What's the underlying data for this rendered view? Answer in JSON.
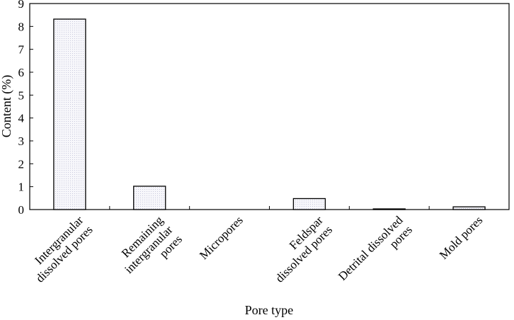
{
  "chart_data": {
    "type": "bar",
    "categories": [
      [
        "Intergranular",
        "dissolved pores"
      ],
      [
        "Remaining",
        "intergranular",
        "pores"
      ],
      [
        "Micropores"
      ],
      [
        "Feldspar",
        "dissolved pores"
      ],
      [
        "Detrital dissolved",
        "pores"
      ],
      [
        "Mold pores"
      ]
    ],
    "values": [
      8.32,
      1.02,
      0.0,
      0.48,
      0.03,
      0.12
    ],
    "xlabel": "Pore type",
    "ylabel": "Content (%)",
    "ylim": [
      0,
      9
    ],
    "yticks": [
      0,
      1,
      2,
      3,
      4,
      5,
      6,
      7,
      8,
      9
    ],
    "grid": false,
    "legend": "none",
    "colors": {
      "bar_fill": "#e9e9f2",
      "bar_stroke": "#000000",
      "axis": "#000000"
    }
  }
}
